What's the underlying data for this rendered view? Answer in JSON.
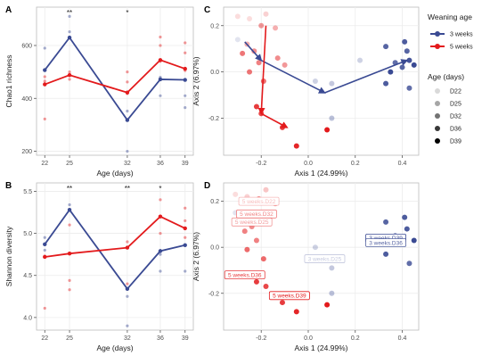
{
  "colors": {
    "w3": "#3a4a93",
    "w5": "#e31a1c",
    "grid": "#ececec",
    "panel_border": "#bdbdbd"
  },
  "chart_data": [
    {
      "panel": "A",
      "type": "line",
      "xlabel": "Age (days)",
      "ylabel": "Chao1 richness",
      "x": [
        22,
        25,
        32,
        36,
        39
      ],
      "xlim": [
        21,
        40
      ],
      "yticks": [
        200,
        400,
        600
      ],
      "ylim": [
        185,
        745
      ],
      "series": [
        {
          "name": "3 weeks",
          "values": [
            507,
            630,
            318,
            472,
            470
          ]
        },
        {
          "name": "5 weeks",
          "values": [
            453,
            488,
            422,
            545,
            512
          ]
        }
      ],
      "points": [
        {
          "x": 22,
          "y": 322,
          "g": "w5"
        },
        {
          "x": 22,
          "y": 482,
          "g": "w5"
        },
        {
          "x": 22,
          "y": 465,
          "g": "w5"
        },
        {
          "x": 22,
          "y": 590,
          "g": "w3"
        },
        {
          "x": 22,
          "y": 508,
          "g": "w3"
        },
        {
          "x": 25,
          "y": 710,
          "g": "w3"
        },
        {
          "x": 25,
          "y": 652,
          "g": "w3"
        },
        {
          "x": 25,
          "y": 628,
          "g": "w5"
        },
        {
          "x": 25,
          "y": 500,
          "g": "w5"
        },
        {
          "x": 25,
          "y": 472,
          "g": "w5"
        },
        {
          "x": 32,
          "y": 200,
          "g": "w3"
        },
        {
          "x": 32,
          "y": 352,
          "g": "w3"
        },
        {
          "x": 32,
          "y": 418,
          "g": "w5"
        },
        {
          "x": 32,
          "y": 500,
          "g": "w5"
        },
        {
          "x": 32,
          "y": 462,
          "g": "w5"
        },
        {
          "x": 36,
          "y": 632,
          "g": "w5"
        },
        {
          "x": 36,
          "y": 600,
          "g": "w5"
        },
        {
          "x": 36,
          "y": 410,
          "g": "w3"
        },
        {
          "x": 36,
          "y": 480,
          "g": "w3"
        },
        {
          "x": 36,
          "y": 540,
          "g": "w5"
        },
        {
          "x": 39,
          "y": 610,
          "g": "w5"
        },
        {
          "x": 39,
          "y": 572,
          "g": "w5"
        },
        {
          "x": 39,
          "y": 365,
          "g": "w3"
        },
        {
          "x": 39,
          "y": 410,
          "g": "w3"
        },
        {
          "x": 39,
          "y": 505,
          "g": "w5"
        }
      ],
      "significance": [
        {
          "x": 25,
          "label": "**"
        },
        {
          "x": 32,
          "label": "*"
        }
      ]
    },
    {
      "panel": "B",
      "type": "line",
      "xlabel": "Age (days)",
      "ylabel": "Shannon diversity",
      "x": [
        22,
        25,
        32,
        36,
        39
      ],
      "xlim": [
        21,
        40
      ],
      "yticks": [
        4.0,
        4.5,
        5.0,
        5.5
      ],
      "ylim": [
        3.85,
        5.6
      ],
      "series": [
        {
          "name": "3 weeks",
          "values": [
            4.87,
            5.28,
            4.34,
            4.79,
            4.86
          ]
        },
        {
          "name": "5 weeks",
          "values": [
            4.72,
            4.76,
            4.83,
            5.2,
            5.06
          ]
        }
      ],
      "points": [
        {
          "x": 22,
          "y": 4.11,
          "g": "w5"
        },
        {
          "x": 22,
          "y": 4.95,
          "g": "w3"
        },
        {
          "x": 22,
          "y": 4.73,
          "g": "w5"
        },
        {
          "x": 22,
          "y": 4.8,
          "g": "w3"
        },
        {
          "x": 25,
          "y": 5.34,
          "g": "w3"
        },
        {
          "x": 25,
          "y": 5.1,
          "g": "w5"
        },
        {
          "x": 25,
          "y": 4.33,
          "g": "w5"
        },
        {
          "x": 25,
          "y": 4.44,
          "g": "w5"
        },
        {
          "x": 32,
          "y": 3.9,
          "g": "w3"
        },
        {
          "x": 32,
          "y": 4.25,
          "g": "w3"
        },
        {
          "x": 32,
          "y": 4.9,
          "g": "w5"
        },
        {
          "x": 32,
          "y": 4.4,
          "g": "w5"
        },
        {
          "x": 36,
          "y": 5.4,
          "g": "w5"
        },
        {
          "x": 36,
          "y": 5.0,
          "g": "w5"
        },
        {
          "x": 36,
          "y": 4.55,
          "g": "w3"
        },
        {
          "x": 36,
          "y": 4.75,
          "g": "w3"
        },
        {
          "x": 39,
          "y": 5.3,
          "g": "w5"
        },
        {
          "x": 39,
          "y": 5.15,
          "g": "w5"
        },
        {
          "x": 39,
          "y": 4.55,
          "g": "w3"
        },
        {
          "x": 39,
          "y": 4.95,
          "g": "w5"
        }
      ],
      "significance": [
        {
          "x": 25,
          "label": "**"
        },
        {
          "x": 32,
          "label": "**"
        },
        {
          "x": 36,
          "label": "*"
        }
      ]
    },
    {
      "panel": "C",
      "type": "scatter",
      "xlabel": "Axis 1 (24.99%)",
      "ylabel": "Axis 2 (6.97%)",
      "xticks": [
        -0.2,
        0.0,
        0.2,
        0.4
      ],
      "xlim": [
        -0.36,
        0.47
      ],
      "yticks": [
        -0.2,
        0.0,
        0.2
      ],
      "ylim": [
        -0.36,
        0.28
      ],
      "points": [
        {
          "x": -0.3,
          "y": 0.24,
          "g": "w5",
          "a": 0.15
        },
        {
          "x": -0.25,
          "y": 0.23,
          "g": "w5",
          "a": 0.15
        },
        {
          "x": -0.18,
          "y": 0.25,
          "g": "w5",
          "a": 0.2
        },
        {
          "x": -0.14,
          "y": 0.19,
          "g": "w5",
          "a": 0.35
        },
        {
          "x": -0.2,
          "y": 0.2,
          "g": "w5",
          "a": 0.45
        },
        {
          "x": -0.3,
          "y": 0.14,
          "g": "w3",
          "a": 0.15
        },
        {
          "x": -0.26,
          "y": 0.12,
          "g": "w5",
          "a": 0.35
        },
        {
          "x": -0.23,
          "y": 0.09,
          "g": "w5",
          "a": 0.5
        },
        {
          "x": -0.28,
          "y": 0.08,
          "g": "w5",
          "a": 0.6
        },
        {
          "x": -0.21,
          "y": 0.04,
          "g": "w5",
          "a": 0.55
        },
        {
          "x": -0.25,
          "y": 0.0,
          "g": "w5",
          "a": 0.6
        },
        {
          "x": -0.19,
          "y": -0.04,
          "g": "w5",
          "a": 0.65
        },
        {
          "x": -0.13,
          "y": 0.06,
          "g": "w5",
          "a": 0.5
        },
        {
          "x": -0.1,
          "y": 0.03,
          "g": "w5",
          "a": 0.45
        },
        {
          "x": -0.22,
          "y": -0.15,
          "g": "w5",
          "a": 0.85
        },
        {
          "x": -0.2,
          "y": -0.18,
          "g": "w5",
          "a": 0.8
        },
        {
          "x": -0.11,
          "y": -0.24,
          "g": "w5",
          "a": 0.85
        },
        {
          "x": -0.05,
          "y": -0.32,
          "g": "w5",
          "a": 0.95
        },
        {
          "x": 0.08,
          "y": -0.25,
          "g": "w5",
          "a": 1.0
        },
        {
          "x": 0.1,
          "y": -0.2,
          "g": "w3",
          "a": 0.35
        },
        {
          "x": 0.03,
          "y": -0.04,
          "g": "w3",
          "a": 0.25
        },
        {
          "x": 0.1,
          "y": -0.05,
          "g": "w3",
          "a": 0.3
        },
        {
          "x": 0.22,
          "y": 0.05,
          "g": "w3",
          "a": 0.25
        },
        {
          "x": 0.33,
          "y": 0.11,
          "g": "w3",
          "a": 0.85
        },
        {
          "x": 0.41,
          "y": 0.13,
          "g": "w3",
          "a": 0.9
        },
        {
          "x": 0.42,
          "y": 0.09,
          "g": "w3",
          "a": 0.85
        },
        {
          "x": 0.43,
          "y": 0.05,
          "g": "w3",
          "a": 0.95
        },
        {
          "x": 0.37,
          "y": 0.04,
          "g": "w3",
          "a": 0.8
        },
        {
          "x": 0.4,
          "y": 0.02,
          "g": "w3",
          "a": 0.85
        },
        {
          "x": 0.35,
          "y": 0.0,
          "g": "w3",
          "a": 1.0
        },
        {
          "x": 0.33,
          "y": -0.05,
          "g": "w3",
          "a": 0.9
        },
        {
          "x": 0.43,
          "y": -0.07,
          "g": "w3",
          "a": 0.8
        },
        {
          "x": 0.45,
          "y": 0.03,
          "g": "w3",
          "a": 1.0
        }
      ],
      "paths": [
        {
          "g": "w3",
          "pts": [
            [
              -0.27,
              0.13
            ],
            [
              -0.2,
              0.05
            ],
            [
              0.07,
              -0.09
            ],
            [
              0.42,
              0.05
            ]
          ]
        },
        {
          "g": "w5",
          "pts": [
            [
              -0.18,
              0.2
            ],
            [
              -0.2,
              -0.18
            ],
            [
              -0.09,
              -0.24
            ]
          ]
        }
      ]
    },
    {
      "panel": "D",
      "type": "scatter",
      "xlabel": "Axis 1 (24.99%)",
      "ylabel": "Axis 2 (6.97%)",
      "xticks": [
        -0.2,
        0.0,
        0.2,
        0.4
      ],
      "xlim": [
        -0.36,
        0.47
      ],
      "yticks": [
        -0.2,
        0.0,
        0.2
      ],
      "ylim": [
        -0.36,
        0.28
      ],
      "points": [
        {
          "x": -0.31,
          "y": 0.23,
          "g": "w5",
          "a": 0.15
        },
        {
          "x": -0.26,
          "y": 0.22,
          "g": "w5",
          "a": 0.2
        },
        {
          "x": -0.18,
          "y": 0.25,
          "g": "w5",
          "a": 0.25
        },
        {
          "x": -0.14,
          "y": 0.19,
          "g": "w5",
          "a": 0.35
        },
        {
          "x": -0.21,
          "y": 0.21,
          "g": "w5",
          "a": 0.5
        },
        {
          "x": -0.31,
          "y": 0.15,
          "g": "w3",
          "a": 0.15
        },
        {
          "x": -0.27,
          "y": 0.11,
          "g": "w5",
          "a": 0.35
        },
        {
          "x": -0.24,
          "y": 0.09,
          "g": "w5",
          "a": 0.5
        },
        {
          "x": -0.27,
          "y": 0.07,
          "g": "w5",
          "a": 0.55
        },
        {
          "x": -0.22,
          "y": 0.03,
          "g": "w5",
          "a": 0.55
        },
        {
          "x": -0.26,
          "y": -0.01,
          "g": "w5",
          "a": 0.65
        },
        {
          "x": -0.19,
          "y": -0.05,
          "g": "w5",
          "a": 0.65
        },
        {
          "x": -0.22,
          "y": -0.15,
          "g": "w5",
          "a": 0.85
        },
        {
          "x": -0.18,
          "y": -0.17,
          "g": "w5",
          "a": 0.8
        },
        {
          "x": -0.11,
          "y": -0.24,
          "g": "w5",
          "a": 0.85
        },
        {
          "x": -0.05,
          "y": -0.28,
          "g": "w5",
          "a": 0.95
        },
        {
          "x": 0.08,
          "y": -0.25,
          "g": "w5",
          "a": 1.0
        },
        {
          "x": 0.1,
          "y": -0.2,
          "g": "w3",
          "a": 0.35
        },
        {
          "x": 0.03,
          "y": 0.0,
          "g": "w3",
          "a": 0.25
        },
        {
          "x": 0.1,
          "y": -0.09,
          "g": "w3",
          "a": 0.3
        },
        {
          "x": 0.33,
          "y": 0.11,
          "g": "w3",
          "a": 0.85
        },
        {
          "x": 0.41,
          "y": 0.13,
          "g": "w3",
          "a": 0.9
        },
        {
          "x": 0.42,
          "y": 0.08,
          "g": "w3",
          "a": 0.9
        },
        {
          "x": 0.37,
          "y": 0.05,
          "g": "w3",
          "a": 0.8
        },
        {
          "x": 0.4,
          "y": 0.04,
          "g": "w3",
          "a": 0.85
        },
        {
          "x": 0.35,
          "y": 0.02,
          "g": "w3",
          "a": 1.0
        },
        {
          "x": 0.33,
          "y": -0.03,
          "g": "w3",
          "a": 0.9
        },
        {
          "x": 0.43,
          "y": -0.07,
          "g": "w3",
          "a": 0.8
        },
        {
          "x": 0.45,
          "y": 0.03,
          "g": "w3",
          "a": 1.0
        }
      ],
      "labels": [
        {
          "text": "5 weeks.D22",
          "x": -0.21,
          "y": 0.2,
          "g": "w5",
          "a": 0.3
        },
        {
          "text": "5 weeks.D32",
          "x": -0.22,
          "y": 0.145,
          "g": "w5",
          "a": 0.55
        },
        {
          "text": "5 weeks.D25",
          "x": -0.24,
          "y": 0.11,
          "g": "w5",
          "a": 0.45
        },
        {
          "text": "5 weeks.D36",
          "x": -0.27,
          "y": -0.12,
          "g": "w5",
          "a": 0.85
        },
        {
          "text": "5 weeks.D39",
          "x": -0.08,
          "y": -0.21,
          "g": "w5",
          "a": 1.0
        },
        {
          "text": "3 weeks.D25",
          "x": 0.07,
          "y": -0.05,
          "g": "w3",
          "a": 0.3
        },
        {
          "text": "3 weeks.D39",
          "x": 0.33,
          "y": 0.04,
          "g": "w3",
          "a": 1.0
        },
        {
          "text": "3 weeks.D36",
          "x": 0.33,
          "y": 0.02,
          "g": "w3",
          "a": 0.85
        }
      ]
    }
  ],
  "legend": {
    "weaning": {
      "title": "Weaning age",
      "items": [
        {
          "label": "3 weeks",
          "color": "#3a4a93"
        },
        {
          "label": "5 weeks",
          "color": "#e31a1c"
        }
      ]
    },
    "age": {
      "title": "Age (days)",
      "items": [
        {
          "label": "D22",
          "alpha": 0.15
        },
        {
          "label": "D25",
          "alpha": 0.35
        },
        {
          "label": "D32",
          "alpha": 0.55
        },
        {
          "label": "D36",
          "alpha": 0.78
        },
        {
          "label": "D39",
          "alpha": 1.0
        }
      ]
    }
  }
}
